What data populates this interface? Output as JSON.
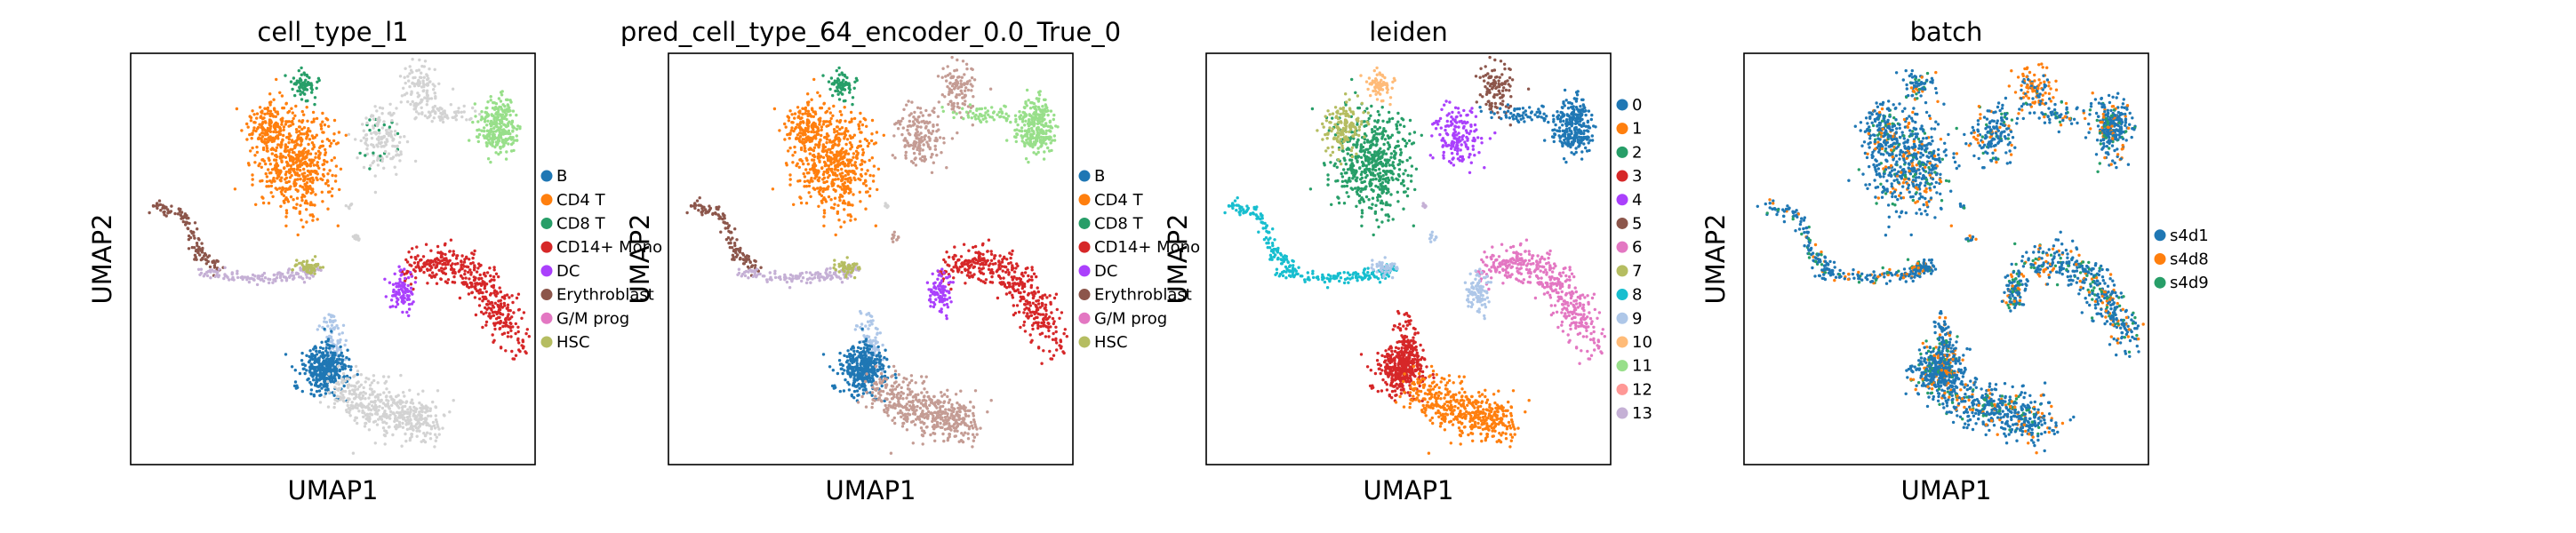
{
  "chart_data": [
    {
      "type": "scatter",
      "title": "cell_type_l1",
      "xlabel": "UMAP1",
      "ylabel": "UMAP2",
      "grid": false,
      "legend": "right",
      "series": [
        {
          "name": "B",
          "color": "#1f77b4"
        },
        {
          "name": "CD4 T",
          "color": "#ff7f0e"
        },
        {
          "name": "CD8 T",
          "color": "#279e68"
        },
        {
          "name": "CD14+ Mono",
          "color": "#d62728"
        },
        {
          "name": "DC",
          "color": "#aa40fc"
        },
        {
          "name": "Erythroblast",
          "color": "#8c564b"
        },
        {
          "name": "G/M prog",
          "color": "#e377c2"
        },
        {
          "name": "HSC",
          "color": "#b5bd61"
        }
      ],
      "unlabeled_color": "#d3d3d3"
    },
    {
      "type": "scatter",
      "title": "pred_cell_type_64_encoder_0.0_True_0",
      "xlabel": "UMAP1",
      "ylabel": "UMAP2",
      "grid": false,
      "legend": "right",
      "series": [
        {
          "name": "B",
          "color": "#1f77b4"
        },
        {
          "name": "CD4 T",
          "color": "#ff7f0e"
        },
        {
          "name": "CD8 T",
          "color": "#279e68"
        },
        {
          "name": "CD14+ Mono",
          "color": "#d62728"
        },
        {
          "name": "DC",
          "color": "#aa40fc"
        },
        {
          "name": "Erythroblast",
          "color": "#8c564b"
        },
        {
          "name": "G/M prog",
          "color": "#e377c2"
        },
        {
          "name": "HSC",
          "color": "#b5bd61"
        }
      ]
    },
    {
      "type": "scatter",
      "title": "leiden",
      "xlabel": "UMAP1",
      "ylabel": "UMAP2",
      "grid": false,
      "legend": "right",
      "series": [
        {
          "name": "0",
          "color": "#1f77b4"
        },
        {
          "name": "1",
          "color": "#ff7f0e"
        },
        {
          "name": "2",
          "color": "#279e68"
        },
        {
          "name": "3",
          "color": "#d62728"
        },
        {
          "name": "4",
          "color": "#aa40fc"
        },
        {
          "name": "5",
          "color": "#8c564b"
        },
        {
          "name": "6",
          "color": "#e377c2"
        },
        {
          "name": "7",
          "color": "#b5bd61"
        },
        {
          "name": "8",
          "color": "#17becf"
        },
        {
          "name": "9",
          "color": "#aec7e8"
        },
        {
          "name": "10",
          "color": "#ffbb78"
        },
        {
          "name": "11",
          "color": "#98df8a"
        },
        {
          "name": "12",
          "color": "#ff9896"
        },
        {
          "name": "13",
          "color": "#c5b0d5"
        }
      ]
    },
    {
      "type": "scatter",
      "title": "batch",
      "xlabel": "UMAP1",
      "ylabel": "UMAP2",
      "grid": false,
      "legend": "right",
      "series": [
        {
          "name": "s4d1",
          "color": "#1f77b4"
        },
        {
          "name": "s4d8",
          "color": "#ff7f0e"
        },
        {
          "name": "s4d9",
          "color": "#279e68"
        }
      ]
    }
  ]
}
